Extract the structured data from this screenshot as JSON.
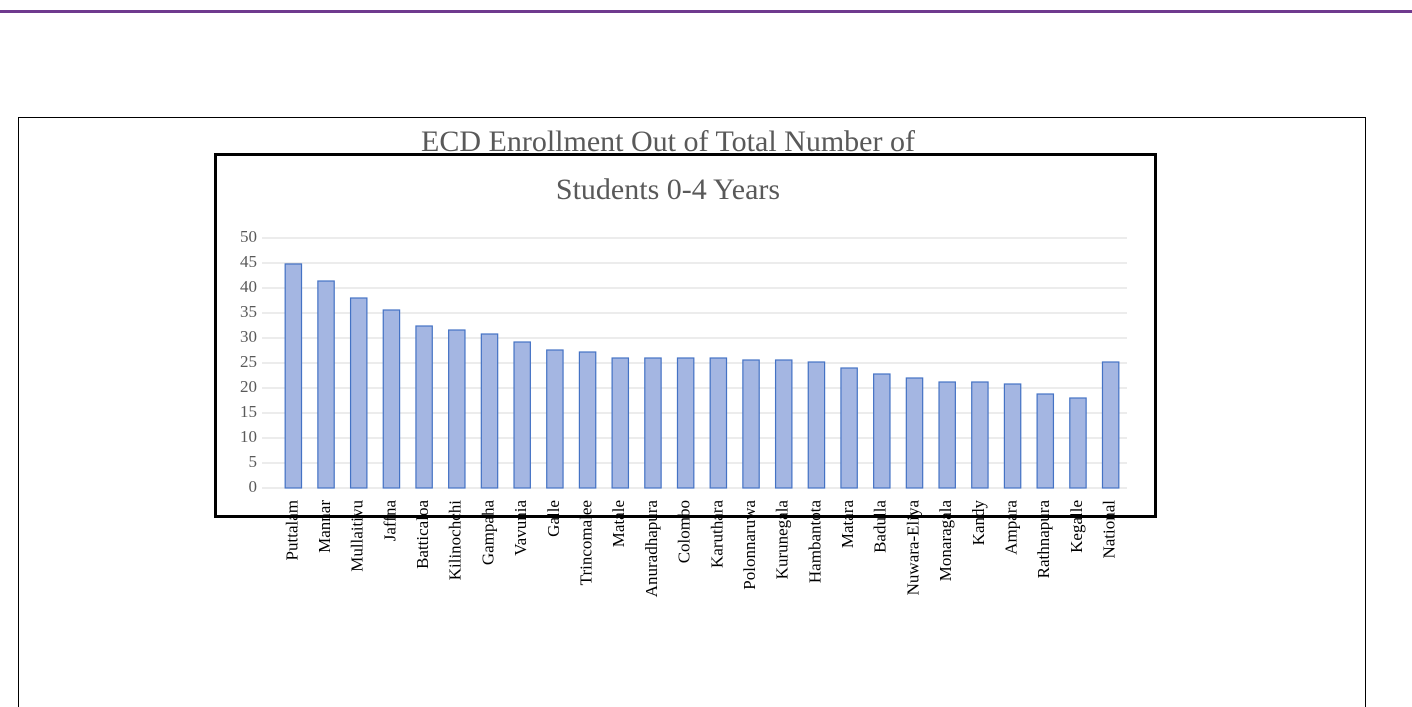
{
  "chart_data": {
    "type": "bar",
    "title": [
      "ECD Enrollment  Out of Total Number of",
      "Students 0-4 Years"
    ],
    "categories": [
      "Puttalam",
      "Mannar",
      "Mullaitivu",
      "Jaffna",
      "Batticaloa",
      "Kilinochchi",
      "Gampaha",
      "Vavunia",
      "Galle",
      "Trincomalee",
      "Matale",
      "Anuradhapura",
      "Colombo",
      "Karuthara",
      "Polonnaruwa",
      "Kurunegala",
      "Hambantota",
      "Matara",
      "Badulla",
      "Nuwara-Eliya",
      "Monaragala",
      "Kandy",
      "Ampara",
      "Rathnapura",
      "Kegalle",
      "National"
    ],
    "values": [
      44.8,
      41.4,
      38,
      35.6,
      32.4,
      31.6,
      30.8,
      29.2,
      27.6,
      27.2,
      26,
      26,
      26,
      26,
      25.6,
      25.6,
      25.2,
      24,
      22.8,
      22,
      21.2,
      21.2,
      20.8,
      18.8,
      18,
      25.2
    ],
    "color": "#a4b6e2",
    "edge_color": "#4472c4",
    "ylim": [
      0,
      50
    ],
    "yticks": [
      0,
      5,
      10,
      15,
      20,
      25,
      30,
      35,
      40,
      45,
      50
    ],
    "grid": true
  }
}
